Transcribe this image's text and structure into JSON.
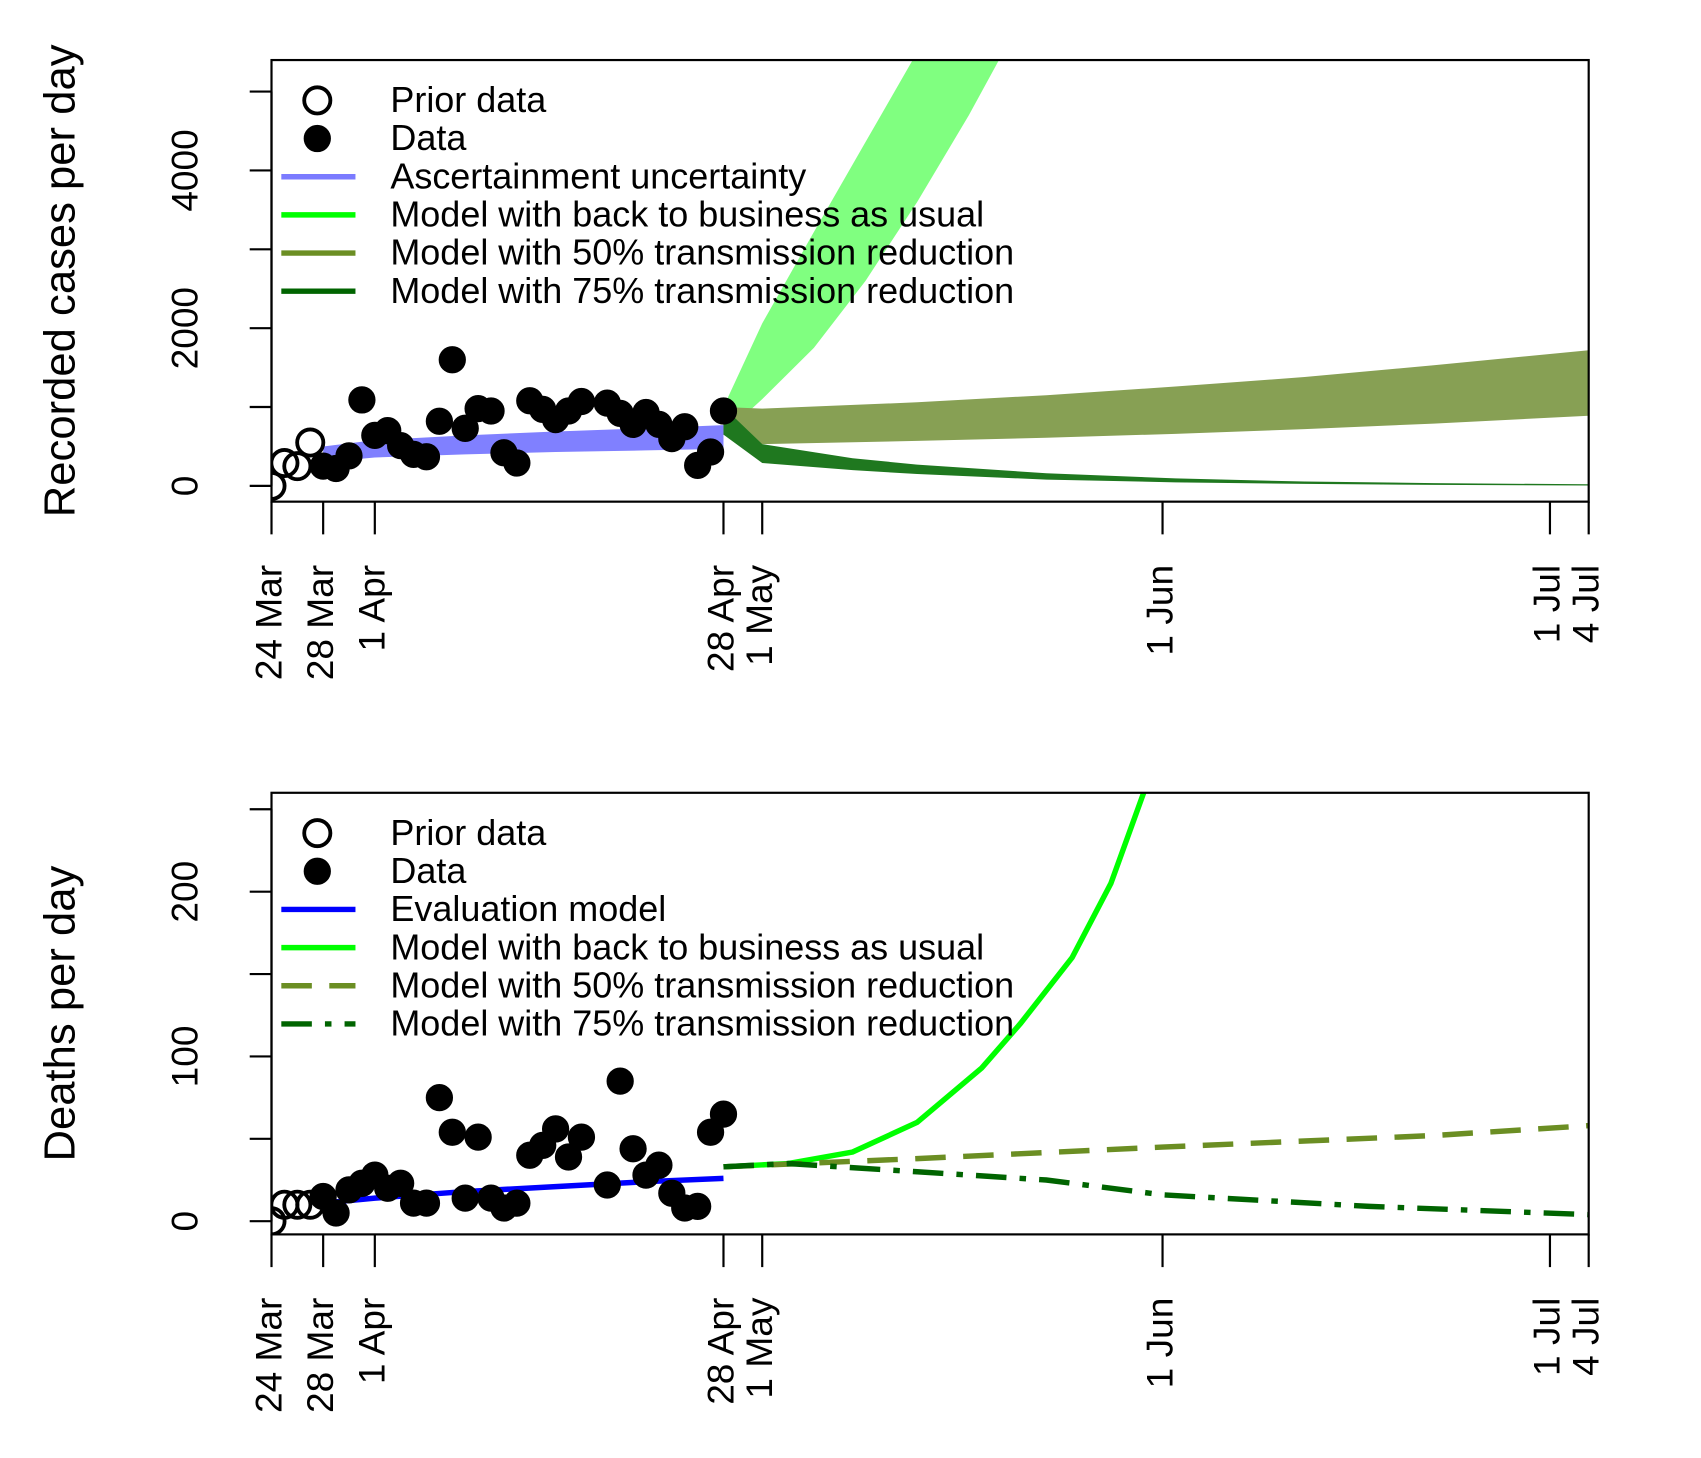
{
  "chart_data": [
    {
      "type": "line",
      "y_label": "Recorded cases per day",
      "xlim": [
        0,
        102
      ],
      "xticks": [
        {
          "value": 0,
          "label": "24 Mar"
        },
        {
          "value": 4,
          "label": "28 Mar"
        },
        {
          "value": 8,
          "label": "1 Apr"
        },
        {
          "value": 35,
          "label": "28 Apr"
        },
        {
          "value": 38,
          "label": "1 May"
        },
        {
          "value": 69,
          "label": "1 Jun"
        },
        {
          "value": 99,
          "label": "1 Jul"
        },
        {
          "value": 102,
          "label": "4 Jul"
        }
      ],
      "ylim": [
        -200,
        5400
      ],
      "yticks": [
        0,
        2000,
        4000
      ],
      "yminor_ticks": [
        1000,
        3000,
        5000
      ],
      "series": [
        {
          "name": "Prior data",
          "style": "open",
          "color": "#000000",
          "x": [
            0,
            1,
            2,
            3
          ],
          "values": [
            0,
            290,
            250,
            550
          ]
        },
        {
          "name": "Data",
          "style": "filled",
          "color": "#000000",
          "x": [
            4,
            5,
            6,
            7,
            8,
            9,
            10,
            11,
            12,
            13,
            14,
            15,
            16,
            17,
            18,
            19,
            20,
            21,
            22,
            23,
            24,
            25,
            26,
            27,
            28,
            29,
            30,
            31,
            32,
            33,
            34,
            35
          ],
          "values": [
            250,
            220,
            380,
            1090,
            640,
            700,
            510,
            400,
            370,
            820,
            1600,
            730,
            980,
            950,
            420,
            290,
            1080,
            970,
            840,
            950,
            1070,
            null,
            1050,
            920,
            780,
            930,
            780,
            600,
            750,
            260,
            430,
            950
          ]
        },
        {
          "name": "Ascertainment uncertainty",
          "style": "band",
          "color": "#7b7bff",
          "fill": "#8080ff",
          "x": [
            4,
            8,
            15,
            22,
            29,
            35
          ],
          "lower": [
            300,
            360,
            400,
            430,
            450,
            470
          ],
          "upper": [
            500,
            580,
            640,
            690,
            730,
            770
          ]
        },
        {
          "name": "Model with back to business as usual",
          "style": "band",
          "color": "#00ff00",
          "fill": "#80ff80",
          "x": [
            35,
            38,
            42,
            46,
            50,
            54,
            58
          ],
          "lower": [
            650,
            1100,
            1750,
            2600,
            3600,
            4700,
            5900
          ],
          "upper": [
            1000,
            2060,
            3220,
            4360,
            5500,
            6600,
            7800
          ]
        },
        {
          "name": "Model with 50% transmission reduction",
          "style": "band",
          "color": "#6b8e23",
          "fill": "#87a054",
          "x": [
            35,
            38,
            50,
            60,
            70,
            80,
            90,
            102
          ],
          "lower": [
            650,
            530,
            570,
            610,
            660,
            720,
            790,
            890
          ],
          "upper": [
            1000,
            980,
            1060,
            1150,
            1260,
            1380,
            1530,
            1720
          ]
        },
        {
          "name": "Model with 75% transmission reduction",
          "style": "band",
          "color": "#006400",
          "fill": "#1f781f",
          "x": [
            35,
            38,
            45,
            50,
            60,
            70,
            80,
            90,
            102
          ],
          "lower": [
            650,
            290,
            200,
            150,
            80,
            45,
            25,
            12,
            5
          ],
          "upper": [
            1000,
            530,
            350,
            270,
            160,
            95,
            55,
            35,
            20
          ]
        }
      ]
    },
    {
      "type": "line",
      "y_label": "Deaths per day",
      "xlim": [
        0,
        102
      ],
      "xticks": [
        {
          "value": 0,
          "label": "24 Mar"
        },
        {
          "value": 4,
          "label": "28 Mar"
        },
        {
          "value": 8,
          "label": "1 Apr"
        },
        {
          "value": 35,
          "label": "28 Apr"
        },
        {
          "value": 38,
          "label": "1 May"
        },
        {
          "value": 69,
          "label": "1 Jun"
        },
        {
          "value": 99,
          "label": "1 Jul"
        },
        {
          "value": 102,
          "label": "4 Jul"
        }
      ],
      "ylim": [
        -8,
        260
      ],
      "yticks": [
        0,
        100,
        200
      ],
      "yminor_ticks": [
        50,
        150,
        250
      ],
      "series": [
        {
          "name": "Prior data",
          "style": "open",
          "color": "#000000",
          "x": [
            0,
            1,
            2,
            3
          ],
          "values": [
            0,
            10,
            10,
            10
          ]
        },
        {
          "name": "Data",
          "style": "filled",
          "color": "#000000",
          "x": [
            4,
            5,
            6,
            7,
            8,
            9,
            10,
            11,
            12,
            13,
            14,
            15,
            16,
            17,
            18,
            19,
            20,
            21,
            22,
            23,
            24,
            25,
            26,
            27,
            28,
            29,
            30,
            31,
            32,
            33,
            34,
            35
          ],
          "values": [
            15,
            5,
            19,
            23,
            28,
            20,
            23,
            11,
            11,
            75,
            54,
            14,
            51,
            14,
            8,
            11,
            40,
            46,
            56,
            39,
            51,
            null,
            22,
            85,
            44,
            28,
            34,
            17,
            8,
            9,
            54,
            65
          ]
        },
        {
          "name": "Evaluation model",
          "style": "line",
          "dash": "solid",
          "color": "#0000ff",
          "x": [
            4,
            8,
            15,
            22,
            29,
            35
          ],
          "values": [
            11,
            14,
            18,
            21,
            24,
            26
          ]
        },
        {
          "name": "Model with back to business as usual",
          "style": "line",
          "dash": "solid",
          "color": "#00ff00",
          "x": [
            35,
            40,
            45,
            50,
            55,
            58,
            62,
            65,
            68
          ],
          "values": [
            33,
            35,
            42,
            60,
            93,
            120,
            160,
            205,
            270
          ]
        },
        {
          "name": "Model with 50% transmission reduction",
          "style": "line",
          "dash": "dashed",
          "color": "#6b8e23",
          "x": [
            35,
            50,
            69,
            90,
            102
          ],
          "values": [
            33,
            38,
            45,
            52,
            58
          ]
        },
        {
          "name": "Model with 75% transmission reduction",
          "style": "line",
          "dash": "dotdash",
          "color": "#006400",
          "x": [
            35,
            40,
            50,
            60,
            69,
            85,
            102
          ],
          "values": [
            33,
            35,
            30,
            25,
            16,
            9,
            4
          ]
        }
      ]
    }
  ]
}
